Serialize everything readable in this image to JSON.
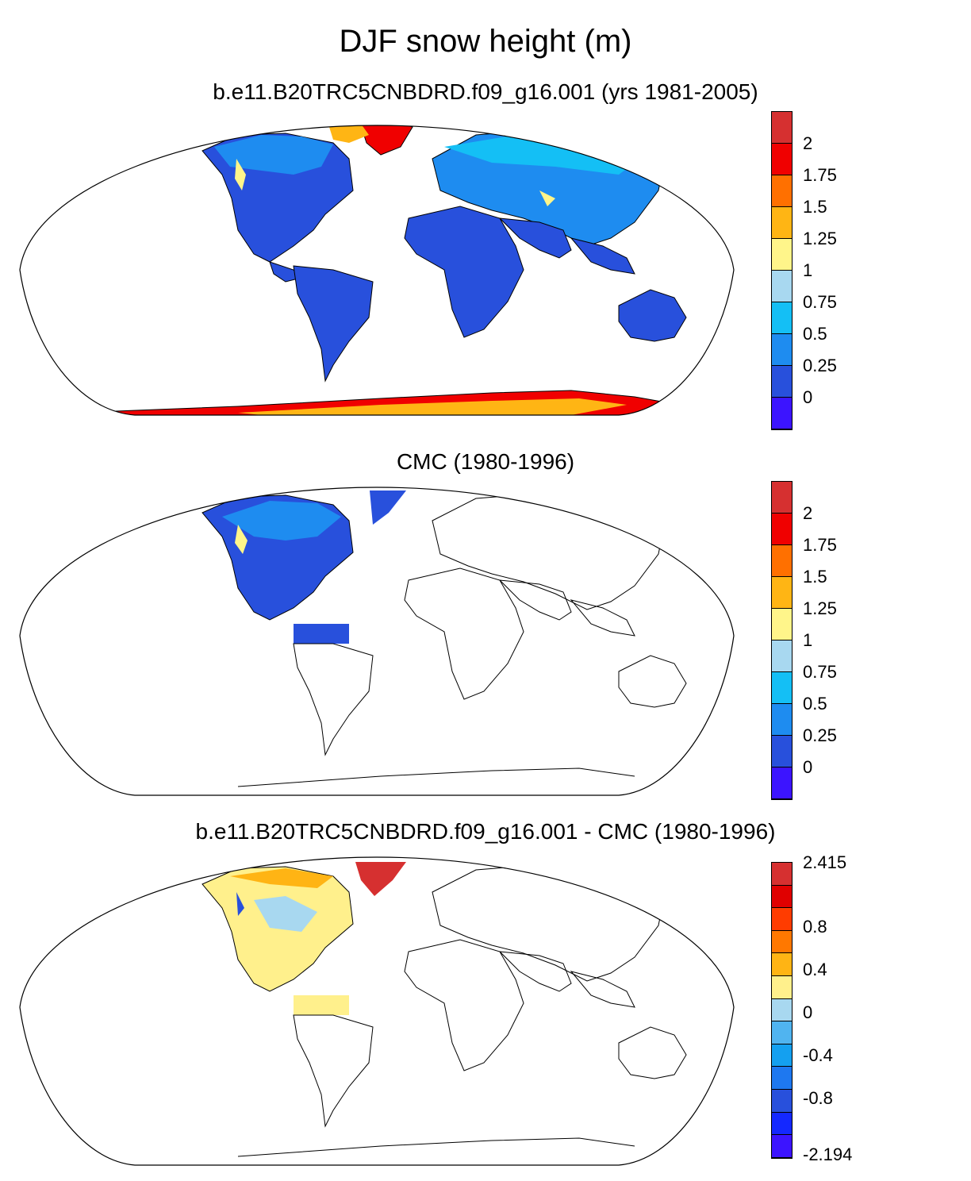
{
  "title": "DJF snow height (m)",
  "panels": [
    {
      "id": "model",
      "title": "b.e11.B20TRC5CNBDRD.f09_g16.001 (yrs 1981-2005)",
      "colorbar": {
        "colors": [
          "#d63030",
          "#f00000",
          "#ff7000",
          "#ffb514",
          "#fff58a",
          "#a8d8f0",
          "#14bff5",
          "#1e8cf0",
          "#2850dc",
          "#3c14ff"
        ],
        "labels": [
          "2",
          "1.75",
          "1.5",
          "1.25",
          "1",
          "0.75",
          "0.5",
          "0.25",
          "0"
        ]
      }
    },
    {
      "id": "obs",
      "title": "CMC (1980-1996)",
      "colorbar": {
        "colors": [
          "#d63030",
          "#f00000",
          "#ff7000",
          "#ffb514",
          "#fff58a",
          "#a8d8f0",
          "#14bff5",
          "#1e8cf0",
          "#2850dc",
          "#3c14ff"
        ],
        "labels": [
          "2",
          "1.75",
          "1.5",
          "1.25",
          "1",
          "0.75",
          "0.5",
          "0.25",
          "0"
        ]
      }
    },
    {
      "id": "diff",
      "title": "b.e11.B20TRC5CNBDRD.f09_g16.001 - CMC (1980-1996)",
      "colorbar": {
        "colors": [
          "#d63030",
          "#e00000",
          "#ff3c00",
          "#ff7800",
          "#ffb414",
          "#fff08c",
          "#a8d8f0",
          "#50b4f0",
          "#14a0f0",
          "#1e78f0",
          "#2850dc",
          "#1428ff",
          "#3c14ff"
        ],
        "labels": [
          "2.415",
          "0.8",
          "0.4",
          "0",
          "-0.4",
          "-0.8",
          "-2.194"
        ]
      }
    }
  ]
}
